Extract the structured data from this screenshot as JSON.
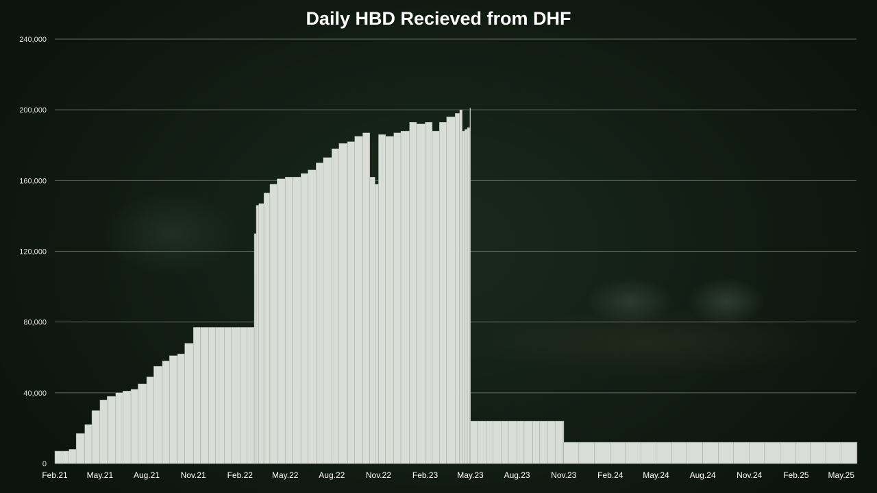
{
  "chart_data": {
    "type": "bar",
    "title": "Daily HBD Recieved from DHF",
    "xlabel": "",
    "ylabel": "",
    "ylim": [
      0,
      240000
    ],
    "y_ticks": [
      0,
      40000,
      80000,
      120000,
      160000,
      200000,
      240000
    ],
    "y_tick_labels": [
      "0",
      "40,000",
      "80,000",
      "120,000",
      "160,000",
      "200,000",
      "240,000"
    ],
    "x_ticks": [
      "2021-02-01",
      "2021-05-01",
      "2021-08-01",
      "2021-11-01",
      "2022-02-01",
      "2022-05-01",
      "2022-08-01",
      "2022-11-01",
      "2023-02-01",
      "2023-05-01",
      "2023-08-01",
      "2023-11-01",
      "2024-02-01",
      "2024-05-01",
      "2024-08-01",
      "2024-11-01",
      "2025-02-01",
      "2025-05-01"
    ],
    "x_tick_labels": [
      "Feb.21",
      "May.21",
      "Aug.21",
      "Nov.21",
      "Feb.22",
      "May.22",
      "Aug.22",
      "Nov.22",
      "Feb.23",
      "May.23",
      "Aug.23",
      "Nov.23",
      "Feb.24",
      "May.24",
      "Aug.24",
      "Nov.24",
      "Feb.25",
      "May.25"
    ],
    "grid": true,
    "bar_color": "#d9ddd7",
    "series": [
      {
        "x": [
          "2021-02-01",
          "2021-02-15",
          "2021-03-01",
          "2021-03-15",
          "2021-04-01",
          "2021-04-15",
          "2021-05-01",
          "2021-05-15",
          "2021-06-01",
          "2021-06-15",
          "2021-07-01",
          "2021-07-15",
          "2021-08-01",
          "2021-08-15",
          "2021-09-01",
          "2021-09-15",
          "2021-10-01",
          "2021-10-15",
          "2021-11-01",
          "2021-11-15",
          "2021-12-01",
          "2021-12-15",
          "2022-01-01",
          "2022-01-15",
          "2022-02-01",
          "2022-02-15",
          "2022-03-01",
          "2022-03-05",
          "2022-03-10",
          "2022-03-20",
          "2022-04-01",
          "2022-04-15",
          "2022-05-01",
          "2022-05-15",
          "2022-06-01",
          "2022-06-15",
          "2022-07-01",
          "2022-07-15",
          "2022-08-01",
          "2022-08-15",
          "2022-09-01",
          "2022-09-15",
          "2022-10-01",
          "2022-10-15",
          "2022-10-25",
          "2022-11-01",
          "2022-11-15",
          "2022-12-01",
          "2022-12-15",
          "2023-01-01",
          "2023-01-15",
          "2023-02-01",
          "2023-02-15",
          "2023-03-01",
          "2023-03-15",
          "2023-04-01",
          "2023-04-10",
          "2023-04-15",
          "2023-04-20",
          "2023-04-25",
          "2023-04-30",
          "2023-05-01",
          "2023-05-15",
          "2023-06-01",
          "2023-06-15",
          "2023-07-01",
          "2023-07-15",
          "2023-08-01",
          "2023-08-15",
          "2023-09-01",
          "2023-09-15",
          "2023-10-01",
          "2023-10-15",
          "2023-10-31",
          "2023-11-01",
          "2023-12-01",
          "2024-01-01",
          "2024-02-01",
          "2024-03-01",
          "2024-04-01",
          "2024-05-01",
          "2024-06-01",
          "2024-07-01",
          "2024-08-01",
          "2024-09-01",
          "2024-10-01",
          "2024-11-01",
          "2024-12-01",
          "2025-01-01",
          "2025-02-01",
          "2025-03-01",
          "2025-04-01",
          "2025-05-01",
          "2025-05-31"
        ],
        "values": [
          7000,
          7000,
          8000,
          17000,
          22000,
          30000,
          36000,
          38000,
          40000,
          41000,
          42000,
          45000,
          49000,
          55000,
          58000,
          61000,
          62000,
          68000,
          77000,
          77000,
          77000,
          77000,
          77000,
          77000,
          77000,
          77000,
          130000,
          146000,
          147000,
          153000,
          158000,
          161000,
          162000,
          162000,
          164000,
          166000,
          170000,
          173000,
          178000,
          181000,
          182000,
          185000,
          187000,
          162000,
          158000,
          186000,
          185000,
          187000,
          188000,
          193000,
          192000,
          193000,
          188000,
          193000,
          196000,
          198000,
          200000,
          188000,
          189000,
          190000,
          201000,
          24000,
          24000,
          24000,
          24000,
          24000,
          24000,
          24000,
          24000,
          24000,
          24000,
          24000,
          24000,
          24000,
          12000,
          12000,
          12000,
          12000,
          12000,
          12000,
          12000,
          12000,
          12000,
          12000,
          12000,
          12000,
          12000,
          12000,
          12000,
          12000,
          12000,
          12000,
          12000,
          12000
        ]
      }
    ]
  }
}
